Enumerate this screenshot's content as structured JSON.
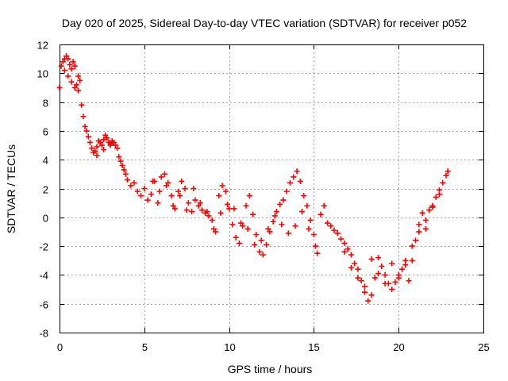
{
  "chart_data": {
    "type": "scatter",
    "title": "Day 020 of 2025, Sidereal Day-to-day VTEC variation (SDTVAR) for receiver p052",
    "xlabel": "GPS time / hours",
    "ylabel": "SDTVAR / TECUs",
    "xlim": [
      0,
      25
    ],
    "ylim": [
      -8,
      12
    ],
    "xticks": [
      0,
      5,
      10,
      15,
      20,
      25
    ],
    "yticks": [
      -8,
      -6,
      -4,
      -2,
      0,
      2,
      4,
      6,
      8,
      10,
      12
    ],
    "grid": true,
    "marker": "+",
    "series_color": "#ff0000",
    "series": [
      {
        "name": "SDTVAR",
        "x": [
          0.0,
          0.1,
          0.2,
          0.3,
          0.4,
          0.5,
          0.6,
          0.7,
          0.8,
          0.9,
          1.0,
          1.1,
          1.2,
          1.3,
          1.4,
          1.5,
          1.6,
          1.7,
          1.8,
          1.9,
          2.0,
          2.1,
          2.2,
          2.3,
          2.4,
          2.5,
          2.6,
          2.7,
          2.8,
          2.9,
          3.0,
          3.1,
          3.2,
          3.3,
          3.4,
          3.5,
          3.6,
          3.7,
          3.8,
          3.9,
          4.0,
          4.2,
          4.4,
          4.6,
          4.8,
          5.0,
          5.2,
          5.4,
          5.6,
          5.8,
          6.0,
          6.2,
          6.4,
          6.6,
          6.8,
          7.0,
          7.2,
          7.4,
          7.6,
          7.8,
          8.0,
          8.2,
          8.4,
          8.6,
          8.8,
          9.0,
          9.2,
          9.4,
          9.6,
          9.8,
          10.0,
          10.2,
          10.4,
          10.6,
          10.8,
          11.0,
          11.2,
          11.4,
          11.6,
          11.8,
          12.0,
          12.2,
          12.4,
          12.6,
          12.8,
          13.0,
          13.2,
          13.4,
          13.6,
          13.8,
          14.0,
          14.2,
          14.4,
          14.6,
          14.8,
          15.0,
          15.2,
          15.4,
          15.6,
          15.8,
          16.0,
          16.2,
          16.4,
          16.6,
          16.8,
          17.0,
          17.2,
          17.4,
          17.6,
          17.8,
          18.0,
          18.2,
          18.4,
          18.6,
          18.8,
          19.0,
          19.2,
          19.4,
          19.6,
          19.8,
          20.0,
          20.2,
          20.4,
          20.6,
          20.8,
          21.0,
          21.2,
          21.4,
          21.6,
          21.8,
          22.0,
          22.2,
          22.4,
          22.6,
          22.8,
          22.9,
          0.3,
          0.5,
          0.7,
          0.9,
          1.1,
          2.2,
          2.6,
          3.0,
          5.5,
          5.9,
          6.3,
          6.7,
          7.1,
          7.5,
          7.9,
          8.3,
          8.7,
          9.1,
          9.5,
          9.9,
          10.3,
          10.7,
          11.1,
          11.5,
          11.9,
          12.3,
          12.7,
          13.1,
          13.5,
          13.9,
          14.3,
          14.7,
          15.1,
          16.4,
          16.8,
          17.2,
          17.6,
          18.0,
          18.4,
          18.8,
          19.2,
          19.6,
          20.0,
          20.4,
          20.8,
          21.2,
          21.6,
          22.0,
          22.4
        ],
        "y": [
          9.0,
          10.5,
          10.8,
          11.0,
          11.2,
          11.0,
          10.6,
          10.3,
          10.8,
          10.5,
          9.2,
          9.8,
          9.5,
          7.8,
          7.0,
          6.3,
          6.0,
          5.6,
          5.2,
          4.8,
          4.5,
          4.6,
          4.9,
          5.3,
          5.2,
          5.0,
          5.4,
          5.7,
          5.5,
          5.2,
          5.1,
          5.3,
          5.2,
          5.0,
          4.8,
          4.2,
          3.9,
          3.6,
          3.3,
          3.0,
          2.6,
          2.2,
          2.4,
          1.8,
          1.5,
          2.0,
          1.2,
          1.6,
          2.5,
          1.0,
          2.8,
          3.0,
          2.4,
          1.5,
          0.6,
          1.8,
          2.5,
          2.0,
          1.0,
          0.4,
          1.2,
          0.8,
          0.5,
          0.3,
          0.1,
          -0.2,
          -1.0,
          1.5,
          2.2,
          1.8,
          0.6,
          -0.5,
          -1.4,
          -1.8,
          -0.6,
          0.8,
          1.5,
          0.2,
          -1.2,
          -2.4,
          -2.6,
          -1.9,
          -1.0,
          -0.3,
          0.4,
          0.9,
          1.2,
          1.8,
          2.4,
          2.8,
          3.2,
          2.5,
          1.5,
          0.8,
          -0.2,
          -1.2,
          -2.5,
          0.2,
          0.8,
          -0.4,
          -0.6,
          -0.9,
          -1.1,
          -1.5,
          -1.8,
          -2.2,
          -2.6,
          -3.2,
          -3.6,
          -4.4,
          -5.2,
          -5.8,
          -5.4,
          -4.2,
          -2.8,
          -3.4,
          -4.0,
          -4.6,
          -5.0,
          -4.5,
          -4.2,
          -3.6,
          -3.0,
          -4.4,
          -3.0,
          -1.6,
          -0.5,
          0.3,
          -0.8,
          0.5,
          0.8,
          1.4,
          1.9,
          2.4,
          2.9,
          3.2,
          10.2,
          9.8,
          9.4,
          9.0,
          8.8,
          4.3,
          4.7,
          5.0,
          2.5,
          1.8,
          2.2,
          0.8,
          1.5,
          0.5,
          2.0,
          1.0,
          0.4,
          -0.8,
          0.3,
          0.9,
          0.6,
          -0.4,
          -0.8,
          -1.9,
          -1.6,
          -0.8,
          0.1,
          -0.5,
          -1.1,
          -0.6,
          0.4,
          -0.8,
          -2.0,
          -1.1,
          -2.4,
          -3.5,
          -4.2,
          -4.8,
          -2.9,
          -3.9,
          -4.6,
          -3.2,
          -4.0,
          -3.3,
          -2.0,
          -1.0,
          -0.2,
          0.7,
          1.6
        ]
      }
    ]
  }
}
